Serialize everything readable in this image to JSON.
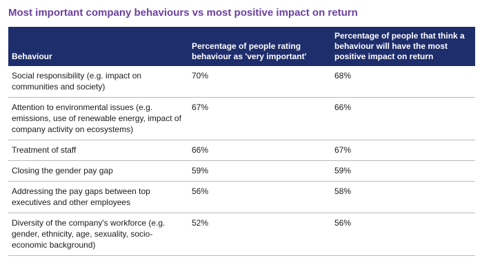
{
  "title": "Most important company behaviours vs most positive impact on return",
  "table": {
    "headers": [
      "Behaviour",
      "Percentage of people rating behaviour as 'very important'",
      "Percentage of people that think a behaviour will have the most positive impact on return"
    ],
    "rows": [
      {
        "behaviour": "Social responsibility (e.g. impact on communities and society)",
        "very_important": "70%",
        "positive_impact": "68%"
      },
      {
        "behaviour": "Attention to environmental issues (e.g. emissions, use of renewable energy, impact of company activity on ecosystems)",
        "very_important": "67%",
        "positive_impact": "66%"
      },
      {
        "behaviour": "Treatment of staff",
        "very_important": "66%",
        "positive_impact": "67%"
      },
      {
        "behaviour": "Closing the gender pay gap",
        "very_important": "59%",
        "positive_impact": "59%"
      },
      {
        "behaviour": "Addressing the pay gaps between top executives and other employees",
        "very_important": "56%",
        "positive_impact": "58%"
      },
      {
        "behaviour": "Diversity of the company's workforce (e.g. gender, ethnicity, age, sexuality, socio-economic background)",
        "very_important": "52%",
        "positive_impact": "56%"
      }
    ]
  }
}
